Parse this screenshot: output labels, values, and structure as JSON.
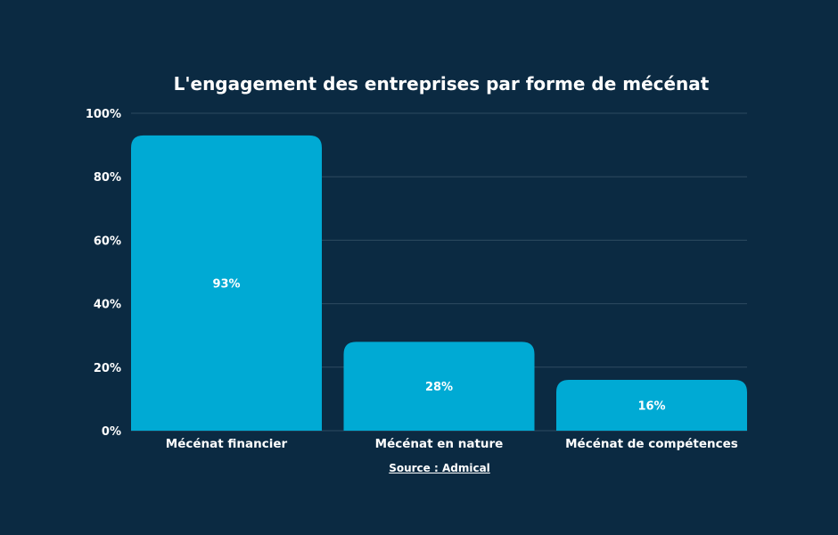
{
  "chart_data": {
    "type": "bar",
    "title": "L'engagement des entreprises par forme de mécénat",
    "categories": [
      "Mécénat financier",
      "Mécénat en nature",
      "Mécénat de compétences"
    ],
    "values": [
      93,
      28,
      16
    ],
    "data_labels": [
      "93%",
      "28%",
      "16%"
    ],
    "ylim": [
      0,
      100
    ],
    "yticks": [
      0,
      20,
      40,
      60,
      80,
      100
    ],
    "ytick_labels": [
      "0%",
      "20%",
      "40%",
      "60%",
      "80%",
      "100%"
    ],
    "grid": true,
    "source": "Source : Admical",
    "colors": {
      "background": "#0b2a42",
      "bar": "#00aad4",
      "grid": "#2e4a60"
    }
  }
}
